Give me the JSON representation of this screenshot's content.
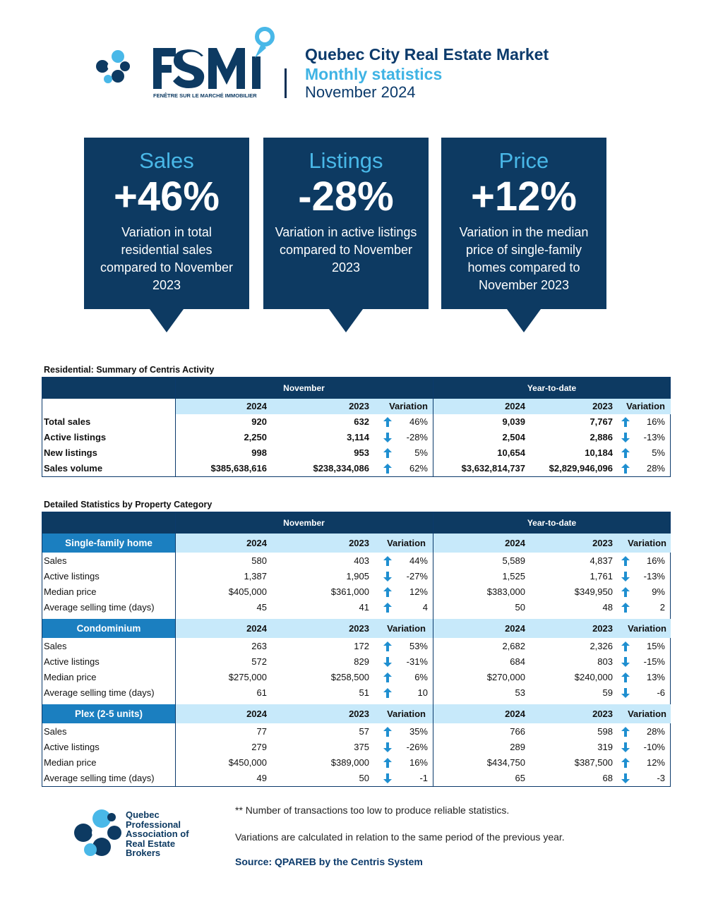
{
  "header": {
    "brand": "FSMI",
    "brand_tagline": "FENÊTRE SUR LE MARCHÉ IMMOBILIER",
    "title": "Quebec City Real Estate Market",
    "subtitle": "Monthly statistics",
    "period": "November 2024"
  },
  "kpis": [
    {
      "label": "Sales",
      "value": "+46%",
      "desc": "Variation in total residential sales compared to November 2023"
    },
    {
      "label": "Listings",
      "value": "-28%",
      "desc": "Variation in active listings compared to November 2023"
    },
    {
      "label": "Price",
      "value": "+12%",
      "desc": "Variation in the median price of single-family homes compared to November 2023"
    }
  ],
  "summary": {
    "title": "Residential: Summary of Centris Activity",
    "group_month": "November",
    "group_ytd": "Year-to-date",
    "col_y1": "2024",
    "col_y2": "2023",
    "col_var": "Variation",
    "rows": [
      {
        "label": "Total sales",
        "m24": "920",
        "m23": "632",
        "mdir": "up",
        "mvar": "46%",
        "y24": "9,039",
        "y23": "7,767",
        "ydir": "up",
        "yvar": "16%"
      },
      {
        "label": "Active listings",
        "m24": "2,250",
        "m23": "3,114",
        "mdir": "down",
        "mvar": "-28%",
        "y24": "2,504",
        "y23": "2,886",
        "ydir": "down",
        "yvar": "-13%"
      },
      {
        "label": "New listings",
        "m24": "998",
        "m23": "953",
        "mdir": "up",
        "mvar": "5%",
        "y24": "10,654",
        "y23": "10,184",
        "ydir": "up",
        "yvar": "5%"
      },
      {
        "label": "Sales volume",
        "m24": "$385,638,616",
        "m23": "$238,334,086",
        "mdir": "up",
        "mvar": "62%",
        "y24": "$3,632,814,737",
        "y23": "$2,829,946,096",
        "ydir": "up",
        "yvar": "28%"
      }
    ]
  },
  "detailed": {
    "title": "Detailed Statistics by Property Category",
    "group_month": "November",
    "group_ytd": "Year-to-date",
    "categories": [
      {
        "name": "Single-family home",
        "rows": [
          {
            "label": "Sales",
            "m24": "580",
            "m23": "403",
            "mdir": "up",
            "mvar": "44%",
            "y24": "5,589",
            "y23": "4,837",
            "ydir": "up",
            "yvar": "16%"
          },
          {
            "label": "Active listings",
            "m24": "1,387",
            "m23": "1,905",
            "mdir": "down",
            "mvar": "-27%",
            "y24": "1,525",
            "y23": "1,761",
            "ydir": "down",
            "yvar": "-13%"
          },
          {
            "label": "Median price",
            "m24": "$405,000",
            "m23": "$361,000",
            "mdir": "up",
            "mvar": "12%",
            "y24": "$383,000",
            "y23": "$349,950",
            "ydir": "up",
            "yvar": "9%"
          },
          {
            "label": "Average selling time (days)",
            "m24": "45",
            "m23": "41",
            "mdir": "up",
            "mvar": "4",
            "y24": "50",
            "y23": "48",
            "ydir": "up",
            "yvar": "2"
          }
        ]
      },
      {
        "name": "Condominium",
        "rows": [
          {
            "label": "Sales",
            "m24": "263",
            "m23": "172",
            "mdir": "up",
            "mvar": "53%",
            "y24": "2,682",
            "y23": "2,326",
            "ydir": "up",
            "yvar": "15%"
          },
          {
            "label": "Active listings",
            "m24": "572",
            "m23": "829",
            "mdir": "down",
            "mvar": "-31%",
            "y24": "684",
            "y23": "803",
            "ydir": "down",
            "yvar": "-15%"
          },
          {
            "label": "Median price",
            "m24": "$275,000",
            "m23": "$258,500",
            "mdir": "up",
            "mvar": "6%",
            "y24": "$270,000",
            "y23": "$240,000",
            "ydir": "up",
            "yvar": "13%"
          },
          {
            "label": "Average selling time (days)",
            "m24": "61",
            "m23": "51",
            "mdir": "up",
            "mvar": "10",
            "y24": "53",
            "y23": "59",
            "ydir": "down",
            "yvar": "-6"
          }
        ]
      },
      {
        "name": "Plex (2-5 units)",
        "rows": [
          {
            "label": "Sales",
            "m24": "77",
            "m23": "57",
            "mdir": "up",
            "mvar": "35%",
            "y24": "766",
            "y23": "598",
            "ydir": "up",
            "yvar": "28%"
          },
          {
            "label": "Active listings",
            "m24": "279",
            "m23": "375",
            "mdir": "down",
            "mvar": "-26%",
            "y24": "289",
            "y23": "319",
            "ydir": "down",
            "yvar": "-10%"
          },
          {
            "label": "Median price",
            "m24": "$450,000",
            "m23": "$389,000",
            "mdir": "up",
            "mvar": "16%",
            "y24": "$434,750",
            "y23": "$387,500",
            "ydir": "up",
            "yvar": "12%"
          },
          {
            "label": "Average selling time (days)",
            "m24": "49",
            "m23": "50",
            "mdir": "down",
            "mvar": "-1",
            "y24": "65",
            "y23": "68",
            "ydir": "down",
            "yvar": "-3"
          }
        ]
      }
    ]
  },
  "footer": {
    "org_name": "Quebec Professional Association of Real Estate Brokers",
    "note1": "**  Number of transactions too low to produce reliable statistics.",
    "note2": "Variations are calculated in relation to the same period of the previous year.",
    "source": "Source: QPAREB by the Centris System"
  },
  "colors": {
    "navy": "#0d3a62",
    "light_blue": "#49b8e8",
    "band_blue": "#c7e9fa",
    "category_blue": "#1b7fc0",
    "arrow_blue": "#1f8fd0"
  },
  "icons": {
    "up": "arrow-up-icon",
    "down": "arrow-down-icon"
  }
}
